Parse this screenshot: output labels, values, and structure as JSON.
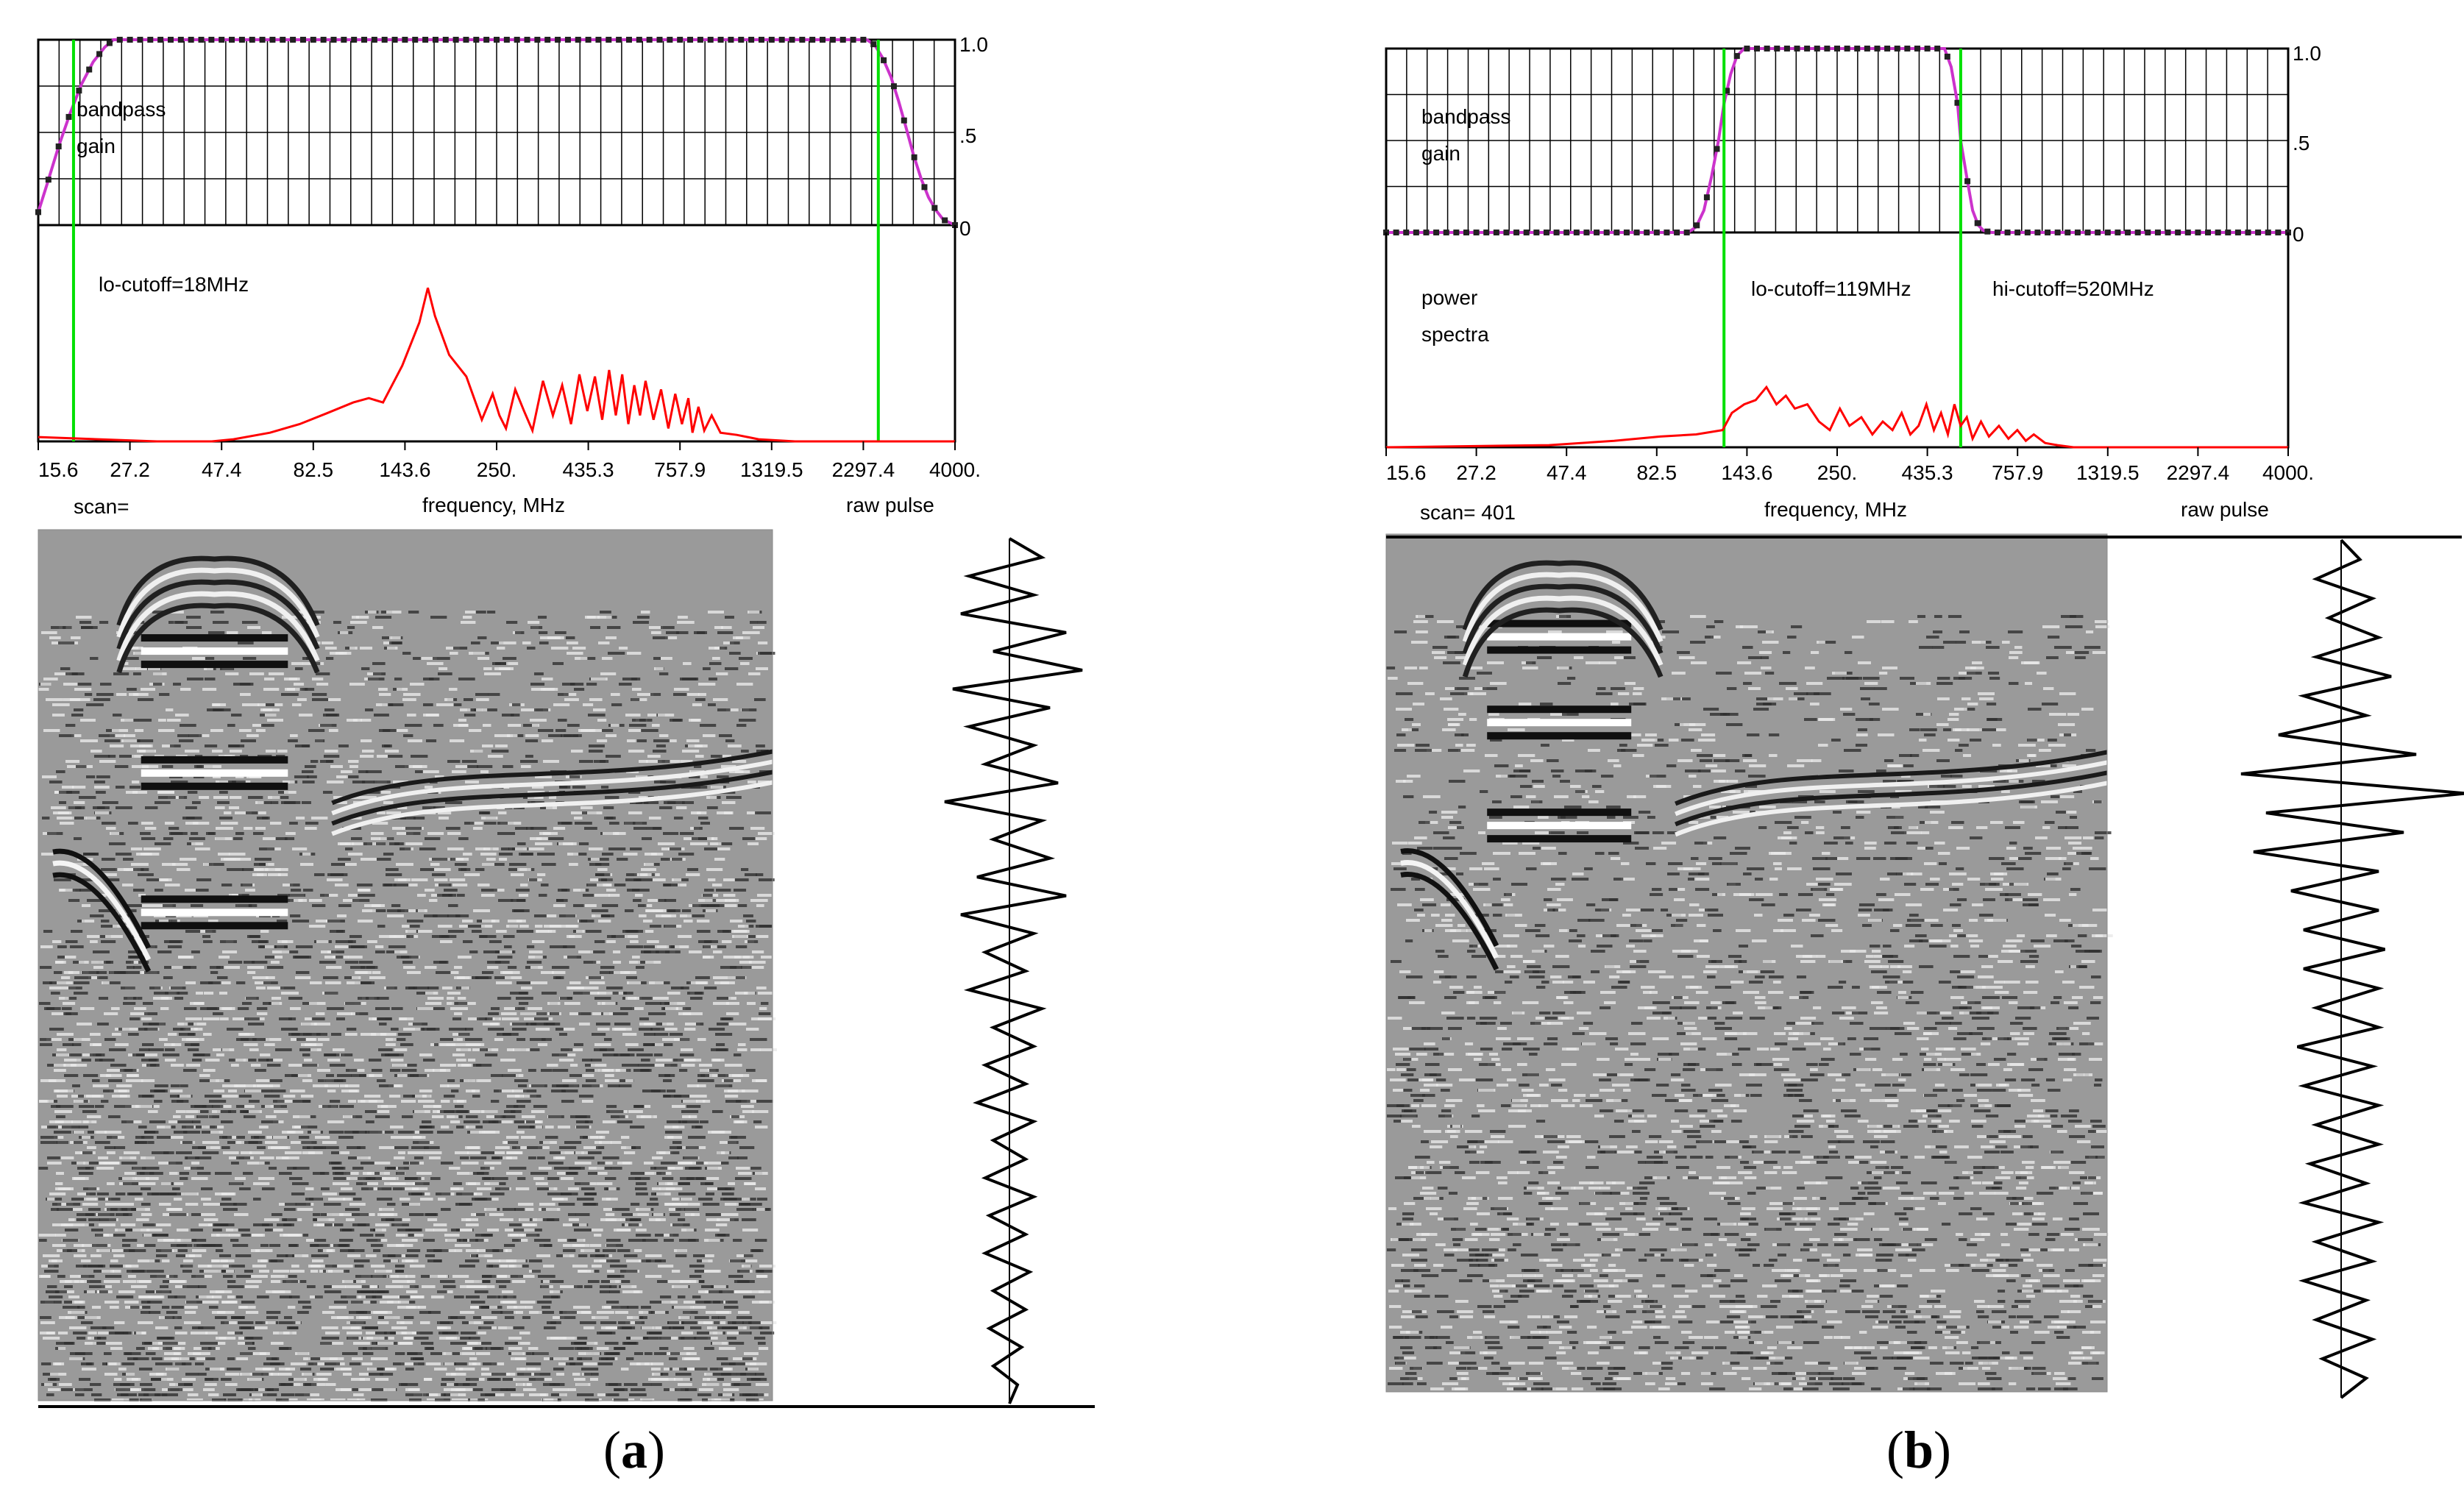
{
  "colors": {
    "gain_curve": "#cc33cc",
    "gain_marker": "#222222",
    "cutoff_line": "#00e000",
    "spectrum": "#ff0000",
    "grid": "#000000",
    "trace": "#000000"
  },
  "panels": [
    {
      "id": "a",
      "caption_open": "(",
      "caption_letter": "a",
      "caption_close": ")",
      "gain_label_1": "bandpass",
      "gain_label_2": "gain",
      "gain_ticks": [
        "1.0",
        ".5",
        "0"
      ],
      "spectra_label_1": "",
      "spectra_label_2": "",
      "lo_cutoff_label": "lo-cutoff=18MHz",
      "hi_cutoff_label": "",
      "freq_ticks": [
        "15.6",
        "27.2",
        "47.4",
        "82.5",
        "143.6",
        "250.",
        "435.3",
        "757.9",
        "1319.5",
        "2297.4",
        "4000."
      ],
      "xlabel": "frequency, MHz",
      "scan_label": "scan=",
      "raw_pulse_label": "raw pulse",
      "chart_data": {
        "type": "line",
        "title": "",
        "xlabel": "frequency, MHz",
        "ylabel": "bandpass gain",
        "x_scale": "log",
        "xlim": [
          14.5,
          4000
        ],
        "ylim": [
          0,
          1.0
        ],
        "grid": true,
        "cutoffs": {
          "lo": 18,
          "hi": 2500
        },
        "series": [
          {
            "name": "bandpass gain",
            "x": [
              14.5,
              15.3,
              16.4,
              17.6,
              18.9,
              20.3,
              21.8,
              23,
              500,
              2330,
              2450,
              2570,
              2700,
              2830,
              2960,
              3100,
              3250,
              3400,
              3560,
              3720,
              4000
            ],
            "values": [
              0.07,
              0.22,
              0.42,
              0.6,
              0.76,
              0.88,
              0.96,
              1.0,
              1.0,
              1.0,
              0.97,
              0.9,
              0.8,
              0.67,
              0.53,
              0.38,
              0.25,
              0.15,
              0.08,
              0.03,
              0.0
            ]
          },
          {
            "name": "power spectra",
            "x": [
              14.5,
              30,
              42,
              48,
              60,
              72,
              85,
              100,
              110,
              120,
              135,
              150,
              158,
              165,
              180,
              200,
              220,
              235,
              245,
              255,
              270,
              285,
              300,
              320,
              340,
              360,
              380,
              400,
              420,
              440,
              460,
              480,
              500,
              520,
              540,
              560,
              580,
              600,
              630,
              660,
              690,
              720,
              750,
              780,
              800,
              830,
              860,
              900,
              950,
              1050,
              1200,
              1500,
              4000
            ],
            "values": [
              0.02,
              0.0,
              0.0,
              0.01,
              0.04,
              0.08,
              0.13,
              0.18,
              0.2,
              0.18,
              0.35,
              0.55,
              0.71,
              0.58,
              0.4,
              0.3,
              0.1,
              0.22,
              0.12,
              0.06,
              0.24,
              0.14,
              0.05,
              0.28,
              0.12,
              0.26,
              0.08,
              0.31,
              0.14,
              0.3,
              0.1,
              0.33,
              0.12,
              0.31,
              0.08,
              0.26,
              0.12,
              0.28,
              0.1,
              0.24,
              0.06,
              0.22,
              0.08,
              0.2,
              0.04,
              0.16,
              0.05,
              0.12,
              0.04,
              0.03,
              0.01,
              0.0,
              0.0
            ]
          }
        ]
      },
      "radargram": {
        "bands": [
          0.12,
          0.26,
          0.42
        ],
        "noise": 0.9
      },
      "raw_pulse": {
        "amplitudes": [
          0.0,
          0.4,
          -0.5,
          0.3,
          -0.6,
          0.7,
          -0.2,
          0.9,
          -0.7,
          0.5,
          -0.5,
          0.3,
          -0.3,
          0.6,
          -0.8,
          0.4,
          -0.2,
          0.5,
          -0.4,
          0.7,
          -0.6,
          0.3,
          -0.3,
          0.2,
          -0.5,
          0.4,
          -0.2,
          0.3,
          -0.3,
          0.2,
          -0.4,
          0.3,
          -0.2,
          0.2,
          -0.3,
          0.3,
          -0.25,
          0.2,
          -0.3,
          0.25,
          -0.2,
          0.2,
          -0.25,
          0.15,
          -0.2,
          0.1,
          0.0
        ]
      }
    },
    {
      "id": "b",
      "caption_open": "(",
      "caption_letter": "b",
      "caption_close": ")",
      "gain_label_1": "bandpass",
      "gain_label_2": "gain",
      "gain_ticks": [
        "1.0",
        ".5",
        "0"
      ],
      "spectra_label_1": "power",
      "spectra_label_2": "spectra",
      "lo_cutoff_label": "lo-cutoff=119MHz",
      "hi_cutoff_label": "hi-cutoff=520MHz",
      "freq_ticks": [
        "15.6",
        "27.2",
        "47.4",
        "82.5",
        "143.6",
        "250.",
        "435.3",
        "757.9",
        "1319.5",
        "2297.4",
        "4000."
      ],
      "xlabel": "frequency, MHz",
      "scan_label": "scan= 401",
      "raw_pulse_label": "raw pulse",
      "chart_data": {
        "type": "line",
        "title": "",
        "xlabel": "frequency, MHz",
        "ylabel": "bandpass gain",
        "x_scale": "log",
        "xlim": [
          14.5,
          4000
        ],
        "ylim": [
          0,
          1.0
        ],
        "grid": true,
        "cutoffs": {
          "lo": 119,
          "hi": 520
        },
        "series": [
          {
            "name": "bandpass gain",
            "x": [
              14.5,
              95,
              100,
              105,
              110,
              115,
              119,
              124,
              129,
              135,
              300,
              470,
              490,
              510,
              520,
              540,
              560,
              580,
              600,
              630,
              4000
            ],
            "values": [
              0.0,
              0.0,
              0.03,
              0.12,
              0.3,
              0.5,
              0.7,
              0.86,
              0.96,
              1.0,
              1.0,
              1.0,
              0.9,
              0.7,
              0.5,
              0.3,
              0.12,
              0.04,
              0.01,
              0.0,
              0.0
            ]
          },
          {
            "name": "power spectra",
            "x": [
              14.5,
              40,
              60,
              80,
              100,
              118,
              125,
              135,
              145,
              155,
              165,
              175,
              185,
              200,
              215,
              230,
              245,
              260,
              280,
              300,
              320,
              340,
              360,
              380,
              400,
              420,
              440,
              460,
              480,
              500,
              520,
              540,
              560,
              590,
              620,
              660,
              700,
              740,
              780,
              820,
              880,
              950,
              1050,
              1300,
              4000
            ],
            "values": [
              0.0,
              0.01,
              0.03,
              0.05,
              0.06,
              0.08,
              0.16,
              0.2,
              0.22,
              0.28,
              0.2,
              0.24,
              0.18,
              0.2,
              0.12,
              0.08,
              0.18,
              0.1,
              0.14,
              0.06,
              0.12,
              0.08,
              0.16,
              0.06,
              0.1,
              0.2,
              0.08,
              0.16,
              0.06,
              0.2,
              0.1,
              0.14,
              0.04,
              0.12,
              0.05,
              0.1,
              0.04,
              0.08,
              0.03,
              0.06,
              0.02,
              0.01,
              0.0,
              0.0,
              0.0
            ]
          }
        ]
      },
      "radargram": {
        "bands": [
          0.1,
          0.2,
          0.32
        ],
        "noise": 0.55
      },
      "raw_pulse": {
        "amplitudes": [
          0.0,
          0.15,
          -0.2,
          0.25,
          -0.1,
          0.3,
          -0.2,
          0.4,
          -0.3,
          0.2,
          -0.5,
          0.6,
          -0.8,
          1.0,
          -0.6,
          0.5,
          -0.7,
          0.3,
          -0.4,
          0.3,
          -0.3,
          0.35,
          -0.3,
          0.3,
          -0.2,
          0.3,
          -0.35,
          0.25,
          -0.3,
          0.3,
          -0.2,
          0.3,
          -0.25,
          0.2,
          -0.3,
          0.3,
          -0.2,
          0.25,
          -0.3,
          0.2,
          -0.2,
          0.25,
          -0.15,
          0.2,
          0.0
        ]
      }
    }
  ]
}
